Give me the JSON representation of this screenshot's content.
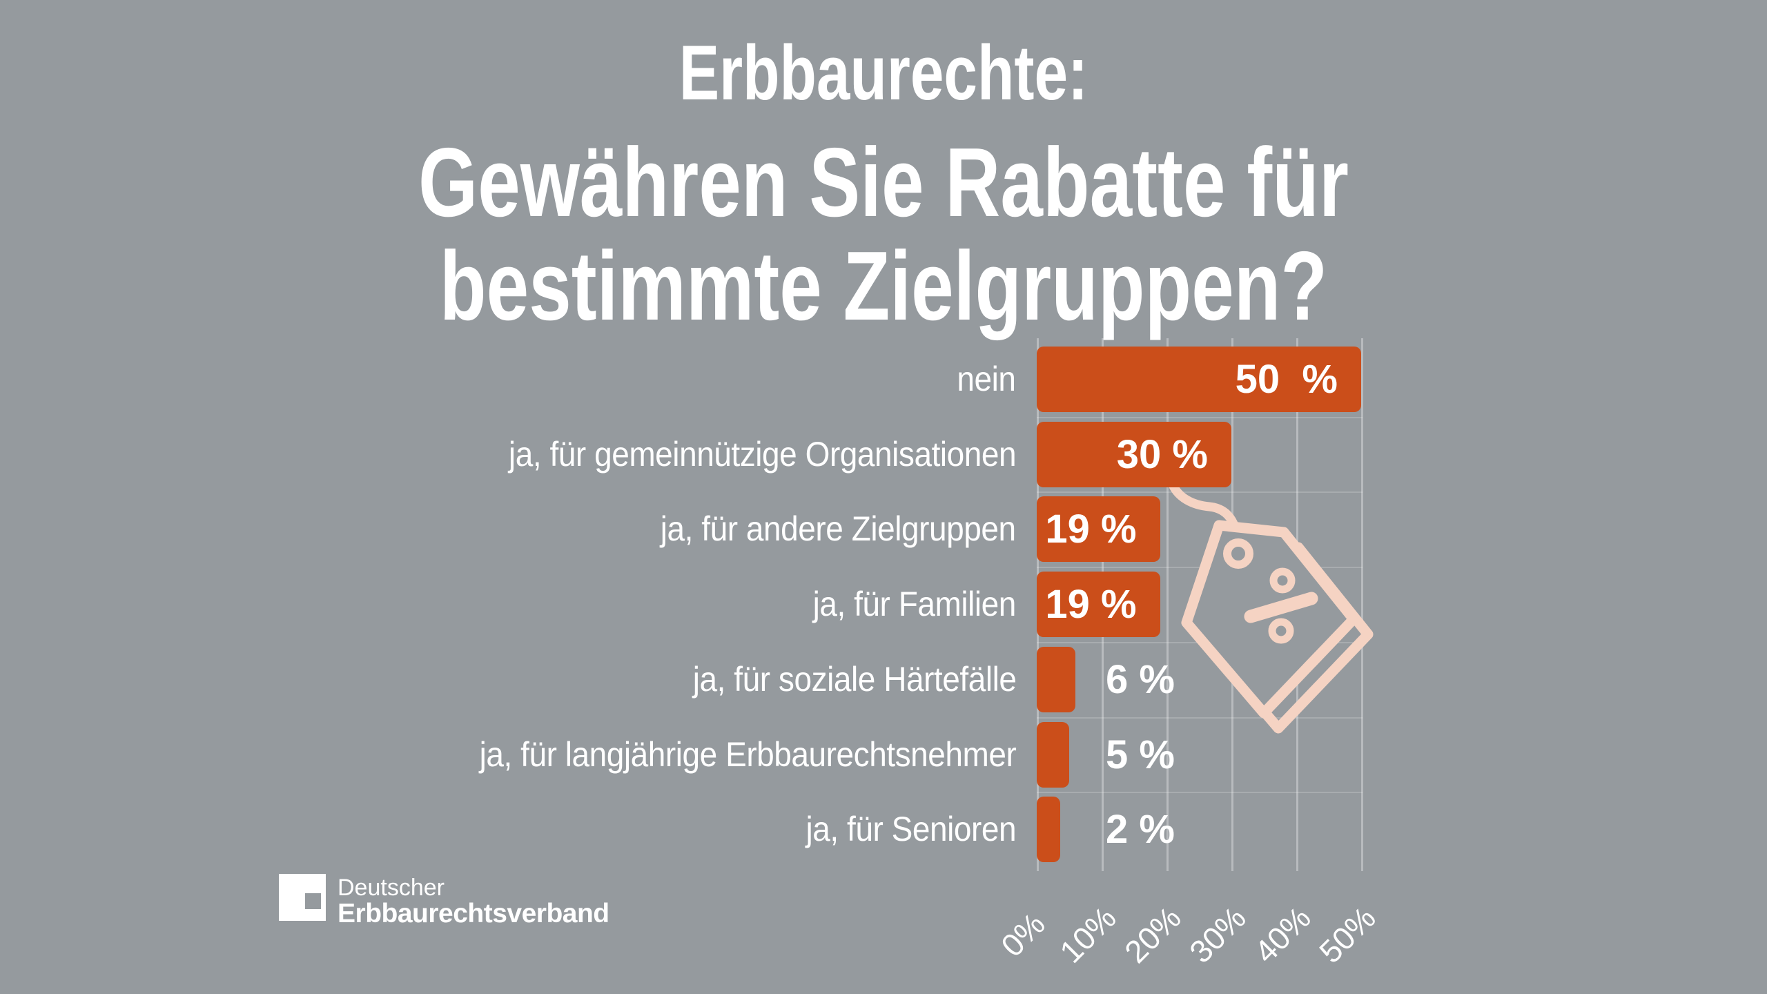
{
  "canvas": {
    "bg_color": "#959A9E",
    "accent_color": "#CB4E1A",
    "icon_color": "#F5D3C3",
    "text_color": "#FFFFFF"
  },
  "header": {
    "kicker": "Erbbaurechte:",
    "question_lines": [
      "Gewähren Sie Rabatte für",
      "bestimmte Zielgruppen?"
    ]
  },
  "chart_data": {
    "type": "bar",
    "orientation": "horizontal",
    "title": "Erbbaurechte: Gewähren Sie Rabatte für bestimmte Zielgruppen?",
    "categories": [
      "nein",
      "ja, für gemeinnützige Organisationen",
      "ja, für andere Zielgruppen",
      "ja, für Familien",
      "ja, für soziale Härtefälle",
      "ja, für langjährige Erbbaurechtsnehmer",
      "ja, für Senioren"
    ],
    "values": [
      50,
      30,
      19,
      19,
      6,
      5,
      2
    ],
    "value_labels": [
      "50  %",
      "30 %",
      "19 %",
      "19 %",
      "6 %",
      "5 %",
      "2 %"
    ],
    "xlabel": "",
    "ylabel": "",
    "xlim": [
      0,
      50
    ],
    "x_ticks": [
      0,
      10,
      20,
      30,
      40,
      50
    ],
    "x_tick_labels": [
      "0%",
      "10%",
      "20%",
      "30%",
      "40%",
      "50%"
    ],
    "grid": "vertical",
    "legend": "none",
    "bar_color": "#CB4E1A",
    "value_label_color": "#FFFFFF"
  },
  "decoration": {
    "icon": "price-tag-percent"
  },
  "logo": {
    "line1": "Deutscher",
    "line2": "Erbbaurechtsverband"
  }
}
